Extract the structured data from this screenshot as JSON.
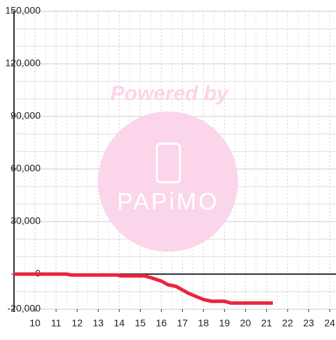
{
  "chart_data": {
    "type": "line",
    "watermark": {
      "top": "Powered by",
      "bottom": "PAPiMO"
    },
    "x": [
      9,
      11.5,
      11.7,
      13.9,
      14.1,
      15.2,
      15.5,
      16,
      16.3,
      16.7,
      17,
      17.3,
      17.7,
      18,
      18.4,
      19,
      19.3,
      20,
      21.3
    ],
    "series": [
      {
        "color": "#e8263c",
        "values": [
          0,
          0,
          -500,
          -500,
          -1000,
          -1000,
          -2000,
          -4000,
          -6000,
          -7000,
          -9000,
          -11000,
          -13000,
          -14500,
          -15500,
          -15500,
          -16500,
          -16500,
          -16500
        ]
      }
    ],
    "xlim": [
      9,
      24.3
    ],
    "ylim": [
      -20000,
      150000
    ],
    "xticks": [
      10,
      11,
      12,
      13,
      14,
      15,
      16,
      17,
      18,
      19,
      20,
      21,
      22,
      23,
      24
    ],
    "yticks": [
      {
        "value": -20000,
        "label": "-20,000"
      },
      0,
      {
        "value": 30000,
        "label": "30,000"
      },
      {
        "value": 60000,
        "label": "60,000"
      },
      {
        "value": 90000,
        "label": "90,000"
      },
      {
        "value": 120000,
        "label": "120,000"
      },
      {
        "value": 150000,
        "label": "150,000"
      }
    ],
    "grid": true
  }
}
